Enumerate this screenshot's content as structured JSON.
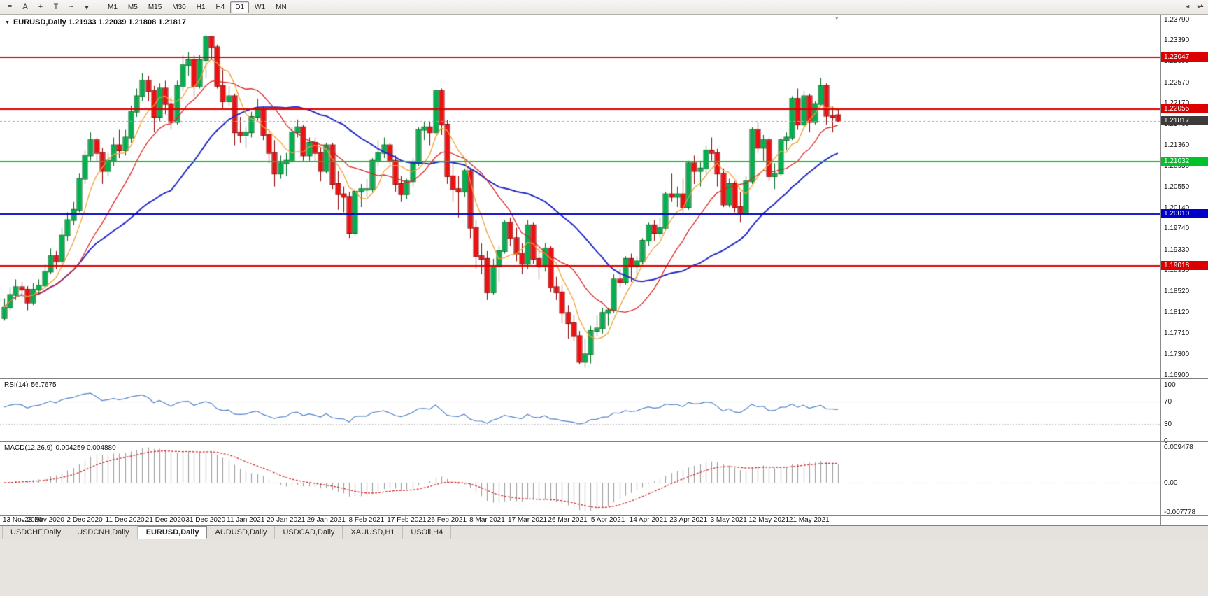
{
  "toolbar": {
    "tools": [
      {
        "name": "chart-bars-icon",
        "glyph": "≡"
      },
      {
        "name": "cursor-tool-icon",
        "glyph": "A"
      },
      {
        "name": "crosshair-icon",
        "glyph": "+"
      },
      {
        "name": "text-tool-icon",
        "glyph": "T"
      },
      {
        "name": "draw-tools-icon",
        "glyph": "~"
      },
      {
        "name": "chevron-down-icon",
        "glyph": "▾"
      }
    ],
    "timeframes": [
      "M1",
      "M5",
      "M15",
      "M30",
      "H1",
      "H4",
      "D1",
      "W1",
      "MN"
    ],
    "active_timeframe": "D1",
    "right_icon": "▲"
  },
  "chart": {
    "title": "EURUSD,Daily 1.21933 1.22039 1.21808 1.21817",
    "title_marker": "▼",
    "shift_marker": "▾",
    "price_axis_labels": [
      "1.23790",
      "1.23390",
      "1.22990",
      "1.22570",
      "1.22170",
      "1.21760",
      "1.21360",
      "1.20950",
      "1.20550",
      "1.20140",
      "1.19740",
      "1.19330",
      "1.18930",
      "1.18520",
      "1.18120",
      "1.17710",
      "1.17300",
      "1.16900"
    ],
    "current_price": {
      "price": 1.21817,
      "label": "1.21817",
      "badge_color": "#3b3b3b",
      "line_color": "#a8a8a8"
    }
  },
  "rsi_panel": {
    "name": "RSI(14)",
    "value": "56.7675",
    "period": 14,
    "axis": [
      "100",
      "70",
      "30",
      "0"
    ],
    "levels": [
      70,
      30
    ],
    "color": "#4f81c7",
    "level_color": "#c4c4c4"
  },
  "macd_panel": {
    "name": "MACD(12,26,9)",
    "value": "0.004259 0.004880",
    "fast": 12,
    "slow": 26,
    "signal": 9,
    "axis": [
      "0.009478",
      "0.00",
      "-0.007778"
    ],
    "histogram_color": "#999999",
    "signal_color": "#d02020",
    "zero_line_color": "#c4c4c4"
  },
  "tabs": {
    "items": [
      "USDCHF,Daily",
      "USDCNH,Daily",
      "EURUSD,Daily",
      "AUDUSD,Daily",
      "USDCAD,Daily",
      "XAUUSD,H1",
      "USOil,H4"
    ],
    "active": "EURUSD,Daily",
    "scroll_left": "◄",
    "scroll_right": "►"
  },
  "chart_data": {
    "type": "candlestick",
    "symbol": "EURUSD",
    "timeframe": "Daily",
    "ohlc_last": {
      "open": 1.21933,
      "high": 1.22039,
      "low": 1.21808,
      "close": 1.21817
    },
    "ylim": [
      1.1683,
      1.2388
    ],
    "bull_color": "#00b050",
    "bull_border": "#006b1e",
    "bear_color": "#ee1010",
    "bear_border": "#8f0000",
    "moving_averages": [
      {
        "period": 30,
        "color": "#2428c8",
        "width": 2
      },
      {
        "period": 14,
        "color": "#e02020",
        "width": 1.3
      },
      {
        "period": 6,
        "color": "#f0a032",
        "width": 1.3
      }
    ],
    "horizontal_lines": [
      {
        "price": 1.23047,
        "label": "1.23047",
        "color": "#dd0000"
      },
      {
        "price": 1.22055,
        "label": "1.22055",
        "color": "#dd0000"
      },
      {
        "price": 1.21032,
        "label": "1.21032",
        "color": "#00c32b"
      },
      {
        "price": 1.2001,
        "label": "1.20010",
        "color": "#0000c8"
      },
      {
        "price": 1.19018,
        "label": "1.19018",
        "color": "#dd0000"
      }
    ],
    "x_tick_every": 7,
    "x_tick_labels": [
      "13 Nov 2020",
      "23 Nov 2020",
      "2 Dec 2020",
      "11 Dec 2020",
      "21 Dec 2020",
      "31 Dec 2020",
      "11 Jan 2021",
      "20 Jan 2021",
      "29 Jan 2021",
      "8 Feb 2021",
      "17 Feb 2021",
      "26 Feb 2021",
      "8 Mar 2021",
      "17 Mar 2021",
      "26 Mar 2021",
      "5 Apr 2021",
      "14 Apr 2021",
      "23 Apr 2021",
      "3 May 2021",
      "12 May 2021",
      "21 May 2021"
    ],
    "candles": [
      [
        1.18,
        1.1838,
        1.1795,
        1.182
      ],
      [
        1.182,
        1.186,
        1.1815,
        1.1845
      ],
      [
        1.1845,
        1.1875,
        1.1835,
        1.186
      ],
      [
        1.186,
        1.187,
        1.184,
        1.1855
      ],
      [
        1.1855,
        1.1862,
        1.1815,
        1.183
      ],
      [
        1.183,
        1.1868,
        1.1825,
        1.1855
      ],
      [
        1.1855,
        1.1875,
        1.1845,
        1.1863
      ],
      [
        1.1863,
        1.1905,
        1.1858,
        1.189
      ],
      [
        1.189,
        1.1935,
        1.1885,
        1.192
      ],
      [
        1.192,
        1.193,
        1.1895,
        1.191
      ],
      [
        1.191,
        1.1975,
        1.1905,
        1.196
      ],
      [
        1.196,
        1.2005,
        1.195,
        1.199
      ],
      [
        1.199,
        1.2025,
        1.198,
        1.201
      ],
      [
        1.201,
        1.208,
        1.2005,
        1.207
      ],
      [
        1.207,
        1.2125,
        1.206,
        1.2115
      ],
      [
        1.2115,
        1.216,
        1.2105,
        1.2145
      ],
      [
        1.2145,
        1.215,
        1.2105,
        1.212
      ],
      [
        1.212,
        1.213,
        1.206,
        1.2085
      ],
      [
        1.2085,
        1.212,
        1.2075,
        1.2105
      ],
      [
        1.2105,
        1.215,
        1.2095,
        1.2135
      ],
      [
        1.2135,
        1.2165,
        1.211,
        1.2125
      ],
      [
        1.2125,
        1.2165,
        1.2115,
        1.215
      ],
      [
        1.215,
        1.2212,
        1.214,
        1.22
      ],
      [
        1.22,
        1.2245,
        1.219,
        1.223
      ],
      [
        1.223,
        1.2275,
        1.222,
        1.226
      ],
      [
        1.226,
        1.227,
        1.222,
        1.224
      ],
      [
        1.224,
        1.225,
        1.216,
        1.219
      ],
      [
        1.219,
        1.2255,
        1.218,
        1.2245
      ],
      [
        1.2245,
        1.226,
        1.2195,
        1.2215
      ],
      [
        1.2215,
        1.223,
        1.2165,
        1.218
      ],
      [
        1.218,
        1.226,
        1.2175,
        1.225
      ],
      [
        1.225,
        1.231,
        1.224,
        1.229
      ],
      [
        1.229,
        1.2315,
        1.227,
        1.23
      ],
      [
        1.23,
        1.231,
        1.223,
        1.225
      ],
      [
        1.225,
        1.231,
        1.2245,
        1.23
      ],
      [
        1.23,
        1.2349,
        1.2265,
        1.2345
      ],
      [
        1.2345,
        1.2346,
        1.23,
        1.2325
      ],
      [
        1.2325,
        1.233,
        1.2245,
        1.225
      ],
      [
        1.225,
        1.2285,
        1.2205,
        1.222
      ],
      [
        1.222,
        1.225,
        1.221,
        1.223
      ],
      [
        1.223,
        1.2235,
        1.2135,
        1.216
      ],
      [
        1.216,
        1.219,
        1.214,
        1.2155
      ],
      [
        1.2155,
        1.217,
        1.213,
        1.216
      ],
      [
        1.216,
        1.22,
        1.215,
        1.219
      ],
      [
        1.219,
        1.2225,
        1.218,
        1.2205
      ],
      [
        1.2205,
        1.221,
        1.2145,
        1.2155
      ],
      [
        1.2155,
        1.2165,
        1.21,
        1.212
      ],
      [
        1.212,
        1.2145,
        1.2055,
        1.208
      ],
      [
        1.208,
        1.2115,
        1.207,
        1.21
      ],
      [
        1.21,
        1.212,
        1.2075,
        1.2105
      ],
      [
        1.2105,
        1.217,
        1.21,
        1.216
      ],
      [
        1.216,
        1.2185,
        1.215,
        1.217
      ],
      [
        1.217,
        1.2175,
        1.2105,
        1.2115
      ],
      [
        1.2115,
        1.215,
        1.2105,
        1.214
      ],
      [
        1.214,
        1.215,
        1.2105,
        1.212
      ],
      [
        1.212,
        1.213,
        1.2065,
        1.2085
      ],
      [
        1.2085,
        1.214,
        1.208,
        1.2135
      ],
      [
        1.2135,
        1.214,
        1.205,
        1.206
      ],
      [
        1.206,
        1.2085,
        1.201,
        1.204
      ],
      [
        1.204,
        1.2055,
        1.2005,
        1.2035
      ],
      [
        1.2035,
        1.2045,
        1.1955,
        1.1965
      ],
      [
        1.1965,
        1.205,
        1.196,
        1.2045
      ],
      [
        1.2045,
        1.206,
        1.2015,
        1.205
      ],
      [
        1.205,
        1.207,
        1.2035,
        1.205
      ],
      [
        1.205,
        1.211,
        1.2045,
        1.2105
      ],
      [
        1.2105,
        1.2145,
        1.2095,
        1.212
      ],
      [
        1.212,
        1.215,
        1.211,
        1.2135
      ],
      [
        1.2135,
        1.214,
        1.2095,
        1.2105
      ],
      [
        1.2105,
        1.2115,
        1.2045,
        1.206
      ],
      [
        1.206,
        1.2075,
        1.2025,
        1.204
      ],
      [
        1.204,
        1.207,
        1.203,
        1.2065
      ],
      [
        1.2065,
        1.211,
        1.2055,
        1.21
      ],
      [
        1.21,
        1.217,
        1.2095,
        1.2165
      ],
      [
        1.2165,
        1.218,
        1.2145,
        1.217
      ],
      [
        1.217,
        1.218,
        1.2135,
        1.216
      ],
      [
        1.216,
        1.2243,
        1.2155,
        1.224
      ],
      [
        1.224,
        1.2245,
        1.2155,
        1.2175
      ],
      [
        1.2175,
        1.2184,
        1.206,
        1.2075
      ],
      [
        1.2075,
        1.21,
        1.2025,
        1.205
      ],
      [
        1.205,
        1.2075,
        1.1995,
        1.2045
      ],
      [
        1.2045,
        1.209,
        1.2035,
        1.2085
      ],
      [
        1.2085,
        1.209,
        1.1955,
        1.1975
      ],
      [
        1.1975,
        1.199,
        1.1895,
        1.192
      ],
      [
        1.192,
        1.1945,
        1.1885,
        1.1915
      ],
      [
        1.1915,
        1.193,
        1.1835,
        1.185
      ],
      [
        1.185,
        1.1915,
        1.1845,
        1.19
      ],
      [
        1.19,
        1.194,
        1.187,
        1.193
      ],
      [
        1.193,
        1.199,
        1.1925,
        1.1985
      ],
      [
        1.1985,
        1.1995,
        1.194,
        1.1955
      ],
      [
        1.1955,
        1.1975,
        1.191,
        1.1925
      ],
      [
        1.1925,
        1.1945,
        1.1885,
        1.1905
      ],
      [
        1.1905,
        1.199,
        1.1895,
        1.198
      ],
      [
        1.198,
        1.1985,
        1.1905,
        1.1915
      ],
      [
        1.1915,
        1.1935,
        1.1875,
        1.19
      ],
      [
        1.19,
        1.1945,
        1.189,
        1.1935
      ],
      [
        1.1935,
        1.194,
        1.185,
        1.186
      ],
      [
        1.186,
        1.188,
        1.1835,
        1.185
      ],
      [
        1.185,
        1.1865,
        1.179,
        1.181
      ],
      [
        1.181,
        1.1825,
        1.176,
        1.179
      ],
      [
        1.179,
        1.1805,
        1.1755,
        1.1765
      ],
      [
        1.1765,
        1.1775,
        1.171,
        1.1715
      ],
      [
        1.1715,
        1.176,
        1.1704,
        1.173
      ],
      [
        1.173,
        1.1785,
        1.1712,
        1.1775
      ],
      [
        1.1775,
        1.1805,
        1.1765,
        1.178
      ],
      [
        1.178,
        1.182,
        1.177,
        1.181
      ],
      [
        1.181,
        1.182,
        1.1785,
        1.1815
      ],
      [
        1.1815,
        1.1885,
        1.181,
        1.1875
      ],
      [
        1.1875,
        1.1895,
        1.186,
        1.187
      ],
      [
        1.187,
        1.192,
        1.1865,
        1.1915
      ],
      [
        1.1915,
        1.1925,
        1.187,
        1.19
      ],
      [
        1.19,
        1.192,
        1.1875,
        1.191
      ],
      [
        1.191,
        1.1955,
        1.1905,
        1.195
      ],
      [
        1.195,
        1.1985,
        1.194,
        1.198
      ],
      [
        1.198,
        1.199,
        1.195,
        1.1965
      ],
      [
        1.1965,
        1.1995,
        1.1955,
        1.1975
      ],
      [
        1.1975,
        1.2045,
        1.197,
        1.204
      ],
      [
        1.204,
        1.208,
        1.2025,
        1.2035
      ],
      [
        1.2035,
        1.2055,
        1.2015,
        1.204
      ],
      [
        1.204,
        1.207,
        1.2005,
        1.2015
      ],
      [
        1.2015,
        1.2105,
        1.201,
        1.21
      ],
      [
        1.21,
        1.2115,
        1.206,
        1.2085
      ],
      [
        1.2085,
        1.2105,
        1.2055,
        1.209
      ],
      [
        1.209,
        1.2135,
        1.208,
        1.2125
      ],
      [
        1.2125,
        1.215,
        1.2105,
        1.212
      ],
      [
        1.212,
        1.2128,
        1.2055,
        1.208
      ],
      [
        1.208,
        1.209,
        1.2015,
        1.202
      ],
      [
        1.202,
        1.207,
        1.2015,
        1.206
      ],
      [
        1.206,
        1.2065,
        1.2005,
        1.2015
      ],
      [
        1.2015,
        1.2045,
        1.1985,
        1.2005
      ],
      [
        1.2005,
        1.2075,
        1.2,
        1.2065
      ],
      [
        1.2065,
        1.217,
        1.206,
        1.2165
      ],
      [
        1.2165,
        1.218,
        1.212,
        1.213
      ],
      [
        1.213,
        1.2155,
        1.2105,
        1.2145
      ],
      [
        1.2145,
        1.215,
        1.2065,
        1.2075
      ],
      [
        1.2075,
        1.21,
        1.205,
        1.208
      ],
      [
        1.208,
        1.215,
        1.2075,
        1.2145
      ],
      [
        1.2145,
        1.216,
        1.2125,
        1.215
      ],
      [
        1.215,
        1.223,
        1.2145,
        1.2225
      ],
      [
        1.2225,
        1.2245,
        1.2165,
        1.2175
      ],
      [
        1.2175,
        1.224,
        1.217,
        1.223
      ],
      [
        1.223,
        1.2235,
        1.216,
        1.218
      ],
      [
        1.218,
        1.222,
        1.2175,
        1.2215
      ],
      [
        1.2215,
        1.2266,
        1.221,
        1.225
      ],
      [
        1.225,
        1.2255,
        1.2175,
        1.2192
      ],
      [
        1.2192,
        1.221,
        1.216,
        1.219
      ],
      [
        1.21933,
        1.22039,
        1.21808,
        1.21817
      ]
    ]
  }
}
